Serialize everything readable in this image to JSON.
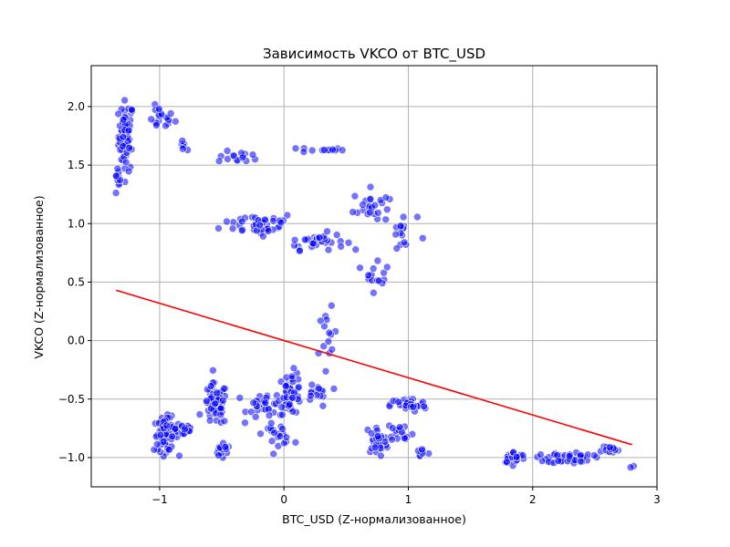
{
  "chart_data": {
    "type": "scatter",
    "title": "Зависимость VKCO от BTC_USD",
    "xlabel": "BTC_USD (Z-нормализованное)",
    "ylabel": "VKCO (Z-нормализованное)",
    "xlim": [
      -1.55,
      3.0
    ],
    "ylim": [
      -1.25,
      2.35
    ],
    "xticks": [
      -1,
      0,
      1,
      2,
      3
    ],
    "yticks": [
      -1.0,
      -0.5,
      0.0,
      0.5,
      1.0,
      1.5,
      2.0
    ],
    "xtick_labels": [
      "−1",
      "0",
      "1",
      "2",
      "3"
    ],
    "ytick_labels": [
      "−1.0",
      "−0.5",
      "0.0",
      "0.5",
      "1.0",
      "1.5",
      "2.0"
    ],
    "grid": true,
    "colors": {
      "points": "#0000ff",
      "trend": "#ff0000",
      "grid": "#b0b0b0"
    },
    "trendline": {
      "x": [
        -1.35,
        2.8
      ],
      "y": [
        0.43,
        -0.89
      ]
    },
    "clusters": [
      {
        "x": -1.27,
        "y": 1.75,
        "sx": 0.05,
        "sy": 0.25,
        "n": 60
      },
      {
        "x": -1.34,
        "y": 1.35,
        "sx": 0.02,
        "sy": 0.12,
        "n": 10
      },
      {
        "x": -1.0,
        "y": 1.9,
        "sx": 0.1,
        "sy": 0.08,
        "n": 20
      },
      {
        "x": -0.8,
        "y": 1.65,
        "sx": 0.04,
        "sy": 0.05,
        "n": 6
      },
      {
        "x": -0.35,
        "y": 1.57,
        "sx": 0.15,
        "sy": 0.04,
        "n": 15
      },
      {
        "x": 0.3,
        "y": 1.63,
        "sx": 0.15,
        "sy": 0.02,
        "n": 12
      },
      {
        "x": -0.2,
        "y": 1.0,
        "sx": 0.25,
        "sy": 0.08,
        "n": 40
      },
      {
        "x": 0.25,
        "y": 0.85,
        "sx": 0.2,
        "sy": 0.06,
        "n": 35
      },
      {
        "x": 0.7,
        "y": 1.15,
        "sx": 0.12,
        "sy": 0.12,
        "n": 25
      },
      {
        "x": 0.95,
        "y": 0.9,
        "sx": 0.1,
        "sy": 0.15,
        "n": 15
      },
      {
        "x": 0.75,
        "y": 0.6,
        "sx": 0.08,
        "sy": 0.15,
        "n": 15
      },
      {
        "x": 0.35,
        "y": -0.05,
        "sx": 0.06,
        "sy": 0.25,
        "n": 15
      },
      {
        "x": -0.95,
        "y": -0.8,
        "sx": 0.08,
        "sy": 0.12,
        "n": 70
      },
      {
        "x": -0.8,
        "y": -0.75,
        "sx": 0.06,
        "sy": 0.07,
        "n": 25
      },
      {
        "x": -0.55,
        "y": -0.55,
        "sx": 0.08,
        "sy": 0.15,
        "n": 60
      },
      {
        "x": -0.5,
        "y": -0.95,
        "sx": 0.06,
        "sy": 0.05,
        "n": 15
      },
      {
        "x": -0.15,
        "y": -0.55,
        "sx": 0.12,
        "sy": 0.1,
        "n": 30
      },
      {
        "x": 0.05,
        "y": -0.45,
        "sx": 0.08,
        "sy": 0.15,
        "n": 50
      },
      {
        "x": -0.05,
        "y": -0.8,
        "sx": 0.1,
        "sy": 0.07,
        "n": 20
      },
      {
        "x": 0.25,
        "y": -0.45,
        "sx": 0.08,
        "sy": 0.08,
        "n": 15
      },
      {
        "x": 0.75,
        "y": -0.85,
        "sx": 0.08,
        "sy": 0.1,
        "n": 30
      },
      {
        "x": 1.0,
        "y": -0.55,
        "sx": 0.12,
        "sy": 0.05,
        "n": 40
      },
      {
        "x": 0.95,
        "y": -0.8,
        "sx": 0.08,
        "sy": 0.08,
        "n": 15
      },
      {
        "x": 1.1,
        "y": -0.95,
        "sx": 0.05,
        "sy": 0.04,
        "n": 8
      },
      {
        "x": 1.85,
        "y": -1.0,
        "sx": 0.08,
        "sy": 0.04,
        "n": 30
      },
      {
        "x": 2.3,
        "y": -1.0,
        "sx": 0.15,
        "sy": 0.04,
        "n": 50
      },
      {
        "x": 2.6,
        "y": -0.93,
        "sx": 0.08,
        "sy": 0.03,
        "n": 15
      },
      {
        "x": 2.8,
        "y": -1.08,
        "sx": 0.02,
        "sy": 0.01,
        "n": 2
      }
    ]
  }
}
